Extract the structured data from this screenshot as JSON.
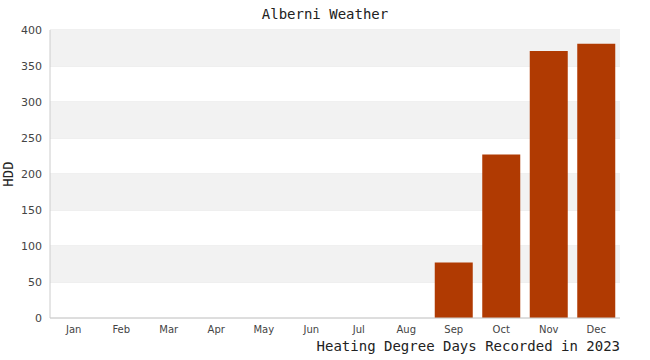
{
  "chart_data": {
    "type": "bar",
    "title": "Alberni Weather",
    "x_label": "Heating Degree Days Recorded in 2023",
    "y_label": "HDD",
    "categories": [
      "Jan",
      "Feb",
      "Mar",
      "Apr",
      "May",
      "Jun",
      "Jul",
      "Aug",
      "Sep",
      "Oct",
      "Nov",
      "Dec"
    ],
    "values": [
      0,
      0,
      0,
      0,
      0,
      0,
      0,
      0,
      77,
      227,
      371,
      381
    ],
    "color": "#b03a02",
    "ylim": [
      0,
      400
    ],
    "yticks": [
      0,
      50,
      100,
      150,
      200,
      250,
      300,
      350,
      400
    ],
    "grid": true
  }
}
